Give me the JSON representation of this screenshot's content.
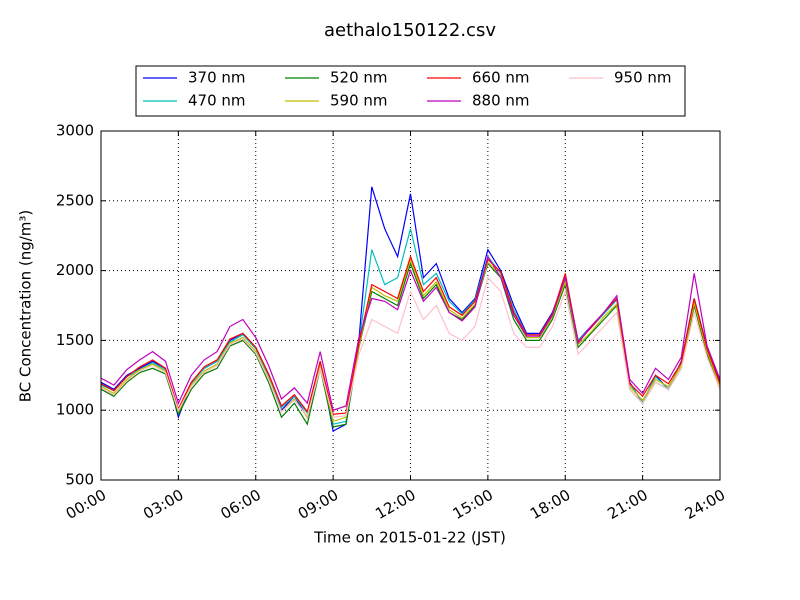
{
  "chart_data": {
    "type": "line",
    "title": "aethalo150122.csv",
    "x_label": "Time on 2015-01-22 (JST)",
    "y_label": "BC Concentration (ng/m³)",
    "x": [
      "00:00",
      "00:30",
      "01:00",
      "01:30",
      "02:00",
      "02:30",
      "03:00",
      "03:30",
      "04:00",
      "04:30",
      "05:00",
      "05:30",
      "06:00",
      "06:30",
      "07:00",
      "07:30",
      "08:00",
      "08:30",
      "09:00",
      "09:30",
      "10:00",
      "10:30",
      "11:00",
      "11:30",
      "12:00",
      "12:30",
      "13:00",
      "13:30",
      "14:00",
      "14:30",
      "15:00",
      "15:30",
      "16:00",
      "16:30",
      "17:00",
      "17:30",
      "18:00",
      "18:30",
      "19:00",
      "19:30",
      "20:00",
      "20:30",
      "21:00",
      "21:30",
      "22:00",
      "22:30",
      "23:00",
      "23:30",
      "24:00"
    ],
    "xlim": [
      "00:00",
      "24:00"
    ],
    "xticks": [
      "00:00",
      "03:00",
      "06:00",
      "09:00",
      "12:00",
      "15:00",
      "18:00",
      "21:00",
      "24:00"
    ],
    "ylim": [
      500,
      3000
    ],
    "yticks": [
      500,
      1000,
      1500,
      2000,
      2500,
      3000
    ],
    "grid": true,
    "legend": "top",
    "series": [
      {
        "name": "370 nm",
        "color": "#0000ff",
        "values": [
          1200,
          1150,
          1250,
          1300,
          1350,
          1300,
          950,
          1200,
          1300,
          1350,
          1500,
          1550,
          1450,
          1250,
          1000,
          1100,
          950,
          1350,
          850,
          900,
          1500,
          2600,
          2300,
          2100,
          2550,
          1950,
          2050,
          1800,
          1700,
          1800,
          2150,
          2000,
          1750,
          1550,
          1550,
          1700,
          1950,
          1500,
          1600,
          1700,
          1800,
          1200,
          1050,
          1250,
          1150,
          1350,
          1800,
          1450,
          1200
        ]
      },
      {
        "name": "470 nm",
        "color": "#00bfbf",
        "values": [
          1180,
          1140,
          1240,
          1290,
          1340,
          1290,
          980,
          1190,
          1300,
          1350,
          1490,
          1540,
          1440,
          1240,
          1020,
          1100,
          980,
          1340,
          900,
          920,
          1480,
          2150,
          1900,
          1950,
          2300,
          1900,
          1980,
          1780,
          1690,
          1790,
          2100,
          1980,
          1720,
          1540,
          1540,
          1690,
          1930,
          1500,
          1590,
          1690,
          1790,
          1190,
          1060,
          1240,
          1150,
          1340,
          1780,
          1440,
          1190
        ]
      },
      {
        "name": "520 nm",
        "color": "#008000",
        "values": [
          1150,
          1100,
          1200,
          1270,
          1300,
          1260,
          970,
          1150,
          1260,
          1300,
          1460,
          1500,
          1400,
          1200,
          950,
          1050,
          900,
          1300,
          880,
          900,
          1450,
          1850,
          1800,
          1750,
          2050,
          1800,
          1900,
          1700,
          1650,
          1750,
          2050,
          1950,
          1650,
          1500,
          1500,
          1650,
          1900,
          1450,
          1550,
          1650,
          1750,
          1150,
          1050,
          1200,
          1150,
          1300,
          1750,
          1400,
          1150
        ]
      },
      {
        "name": "590 nm",
        "color": "#bfbf00",
        "values": [
          1170,
          1120,
          1220,
          1290,
          1330,
          1280,
          990,
          1180,
          1280,
          1330,
          1480,
          1520,
          1420,
          1230,
          990,
          1080,
          950,
          1320,
          920,
          950,
          1460,
          1880,
          1820,
          1780,
          2080,
          1820,
          1920,
          1720,
          1660,
          1760,
          2060,
          1960,
          1680,
          1520,
          1520,
          1670,
          1920,
          1470,
          1560,
          1670,
          1760,
          1170,
          1070,
          1220,
          1170,
          1320,
          1770,
          1420,
          1170
        ]
      },
      {
        "name": "660 nm",
        "color": "#ff0000",
        "values": [
          1190,
          1140,
          1240,
          1310,
          1360,
          1300,
          1010,
          1200,
          1310,
          1360,
          1510,
          1550,
          1450,
          1260,
          1030,
          1110,
          990,
          1350,
          970,
          980,
          1480,
          1900,
          1850,
          1800,
          2100,
          1850,
          1950,
          1740,
          1680,
          1780,
          2080,
          1990,
          1700,
          1540,
          1540,
          1690,
          1980,
          1490,
          1590,
          1700,
          1800,
          1190,
          1100,
          1250,
          1190,
          1340,
          1800,
          1440,
          1190
        ]
      },
      {
        "name": "880 nm",
        "color": "#bf00bf",
        "values": [
          1230,
          1180,
          1290,
          1360,
          1420,
          1350,
          1050,
          1250,
          1360,
          1420,
          1600,
          1650,
          1520,
          1320,
          1080,
          1160,
          1050,
          1420,
          1000,
          1030,
          1520,
          1800,
          1780,
          1720,
          2000,
          1780,
          1880,
          1700,
          1640,
          1740,
          2100,
          1950,
          1680,
          1530,
          1530,
          1680,
          1950,
          1480,
          1600,
          1700,
          1820,
          1220,
          1120,
          1300,
          1220,
          1380,
          1980,
          1460,
          1220
        ]
      },
      {
        "name": "950 nm",
        "color": "#ffc0cb",
        "values": [
          1160,
          1110,
          1210,
          1280,
          1320,
          1270,
          1000,
          1170,
          1270,
          1320,
          1470,
          1510,
          1410,
          1220,
          990,
          1070,
          960,
          1300,
          950,
          960,
          1400,
          1650,
          1600,
          1550,
          1850,
          1650,
          1750,
          1550,
          1500,
          1600,
          1950,
          1850,
          1550,
          1450,
          1450,
          1600,
          1850,
          1400,
          1500,
          1600,
          1700,
          1150,
          1050,
          1200,
          1150,
          1300,
          1700,
          1380,
          1150
        ]
      }
    ]
  }
}
